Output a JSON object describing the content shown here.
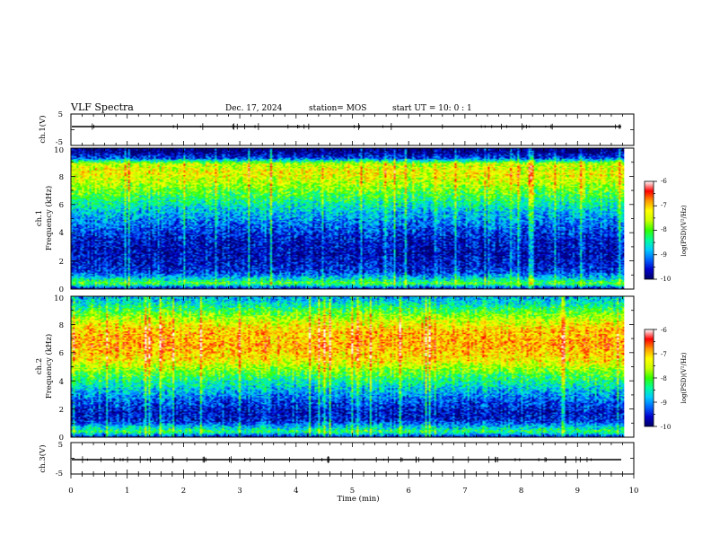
{
  "header": {
    "title": "VLF Spectra",
    "date": "Dec. 17, 2024",
    "station": "station= MOS",
    "start": "start  UT  =   10: 0  : 1"
  },
  "chart_data": [
    {
      "type": "line",
      "panel": "ch1-waveform",
      "ylabel": "ch.1(V)",
      "yticks": [
        "5",
        "-5"
      ],
      "ylim": [
        -5,
        5
      ],
      "xlim": [
        0,
        10
      ]
    },
    {
      "type": "heatmap",
      "panel": "ch1-spectrogram",
      "ylabel_line1": "ch.1",
      "ylabel_line2": "Frequency  (kHz)",
      "ylim": [
        0,
        10
      ],
      "yticks": [
        "0",
        "2",
        "4",
        "6",
        "8",
        "10"
      ],
      "xlim": [
        0,
        10
      ],
      "x_data_end": 9.83,
      "colorbar": {
        "label": "log(PSD)(V²/Hz)",
        "ticks": [
          "-6",
          "-7",
          "-8",
          "-9",
          "-10"
        ],
        "range": [
          -10,
          -6
        ]
      },
      "intensity_profile": {
        "freq_khz": [
          0.0,
          0.4,
          0.8,
          1.2,
          1.8,
          2.5,
          3.5,
          4.5,
          5.5,
          6.5,
          7.5,
          8.3,
          8.9,
          9.3,
          9.7,
          10.0
        ],
        "log_psd": [
          -9.8,
          -8.0,
          -8.8,
          -9.4,
          -9.6,
          -9.7,
          -9.6,
          -9.2,
          -8.8,
          -8.2,
          -7.6,
          -7.3,
          -7.6,
          -9.4,
          -9.9,
          -10.0
        ]
      }
    },
    {
      "type": "heatmap",
      "panel": "ch2-spectrogram",
      "ylabel_line1": "ch.2",
      "ylabel_line2": "Frequency  (kHz)",
      "ylim": [
        0,
        10
      ],
      "yticks": [
        "0",
        "2",
        "4",
        "6",
        "8",
        "10"
      ],
      "xlim": [
        0,
        10
      ],
      "x_data_end": 9.83,
      "colorbar": {
        "label": "log(PSD)(V²/Hz)",
        "ticks": [
          "-6",
          "-7",
          "-8",
          "-9",
          "-10"
        ],
        "range": [
          -10,
          -6
        ]
      },
      "intensity_profile": {
        "freq_khz": [
          0.0,
          0.4,
          0.8,
          1.2,
          1.8,
          2.5,
          3.5,
          4.5,
          5.5,
          6.5,
          7.5,
          8.3,
          9.0,
          9.5,
          10.0
        ],
        "log_psd": [
          -9.6,
          -8.2,
          -8.9,
          -9.5,
          -9.6,
          -9.3,
          -8.7,
          -8.0,
          -7.2,
          -6.9,
          -7.0,
          -7.5,
          -8.1,
          -8.6,
          -8.9
        ]
      }
    },
    {
      "type": "line",
      "panel": "ch3-waveform",
      "ylabel": "ch.3(V)",
      "yticks": [
        "5",
        "-5"
      ],
      "ylim": [
        -5,
        5
      ],
      "xlim": [
        0,
        10
      ]
    }
  ],
  "xaxis": {
    "label": "Time  (min)",
    "ticks": [
      "0",
      "1",
      "2",
      "3",
      "4",
      "5",
      "6",
      "7",
      "8",
      "9",
      "10"
    ]
  },
  "colors": {
    "colormap": [
      "#000066",
      "#0000cc",
      "#0066ff",
      "#00ccff",
      "#00ff99",
      "#33ff00",
      "#ccff00",
      "#ffff00",
      "#ff9900",
      "#ff0000",
      "#ffffff"
    ]
  }
}
